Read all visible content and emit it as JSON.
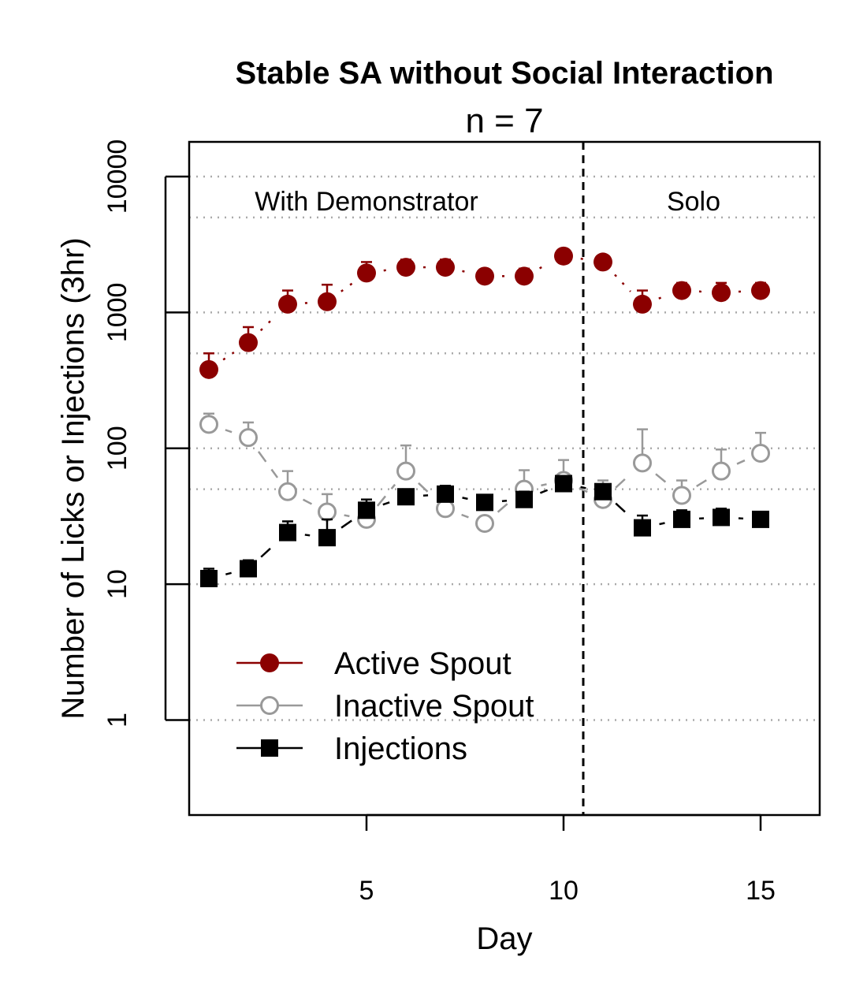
{
  "chart_data": {
    "type": "line",
    "title": "Stable SA without Social Interaction",
    "subtitle": "n = 7",
    "xlabel": "Day",
    "ylabel": "Number of Licks or Injections (3hr)",
    "x_ticks": [
      5,
      10,
      15
    ],
    "y_ticks": [
      1,
      10,
      100,
      1000,
      10000
    ],
    "y_scale": "log",
    "xlim": [
      0.5,
      16.5
    ],
    "ylim": [
      0.2,
      18000
    ],
    "grid": "dotted horizontal at 1, 10, 50, 100, 500, 1000, 5000, 10000",
    "divider_day": 10.5,
    "regions": [
      {
        "label": "With Demonstrator",
        "day_center": 5.0
      },
      {
        "label": "Solo",
        "day_center": 13.3
      }
    ],
    "x": [
      1,
      2,
      3,
      4,
      5,
      6,
      7,
      8,
      9,
      10,
      11,
      12,
      13,
      14,
      15
    ],
    "series": [
      {
        "name": "Active Spout",
        "color": "#8b0000",
        "marker": "filled-circle",
        "line": "dotted",
        "values": [
          380,
          600,
          1150,
          1200,
          1950,
          2150,
          2150,
          1850,
          1850,
          2600,
          2350,
          1150,
          1450,
          1400,
          1450
        ],
        "error_upper": [
          500,
          780,
          1450,
          1600,
          2350,
          2450,
          2450,
          2000,
          2100,
          2700,
          2500,
          1450,
          1650,
          1650,
          1650
        ]
      },
      {
        "name": "Inactive Spout",
        "color": "#999999",
        "marker": "open-circle",
        "line": "dashed",
        "values": [
          150,
          120,
          48,
          34,
          30,
          68,
          36,
          28,
          50,
          58,
          42,
          78,
          45,
          68,
          92
        ],
        "error_upper": [
          180,
          155,
          68,
          46,
          33,
          105,
          40,
          31,
          69,
          82,
          58,
          138,
          58,
          98,
          130
        ]
      },
      {
        "name": "Injections",
        "color": "#000000",
        "marker": "filled-square",
        "line": "dashed",
        "values": [
          11,
          13,
          24,
          22,
          35,
          44,
          46,
          40,
          42,
          55,
          48,
          26,
          30,
          31,
          30
        ],
        "error_upper": [
          13,
          15,
          29,
          30,
          42,
          48,
          53,
          44,
          48,
          59,
          52,
          32,
          35,
          36,
          33
        ]
      }
    ]
  }
}
